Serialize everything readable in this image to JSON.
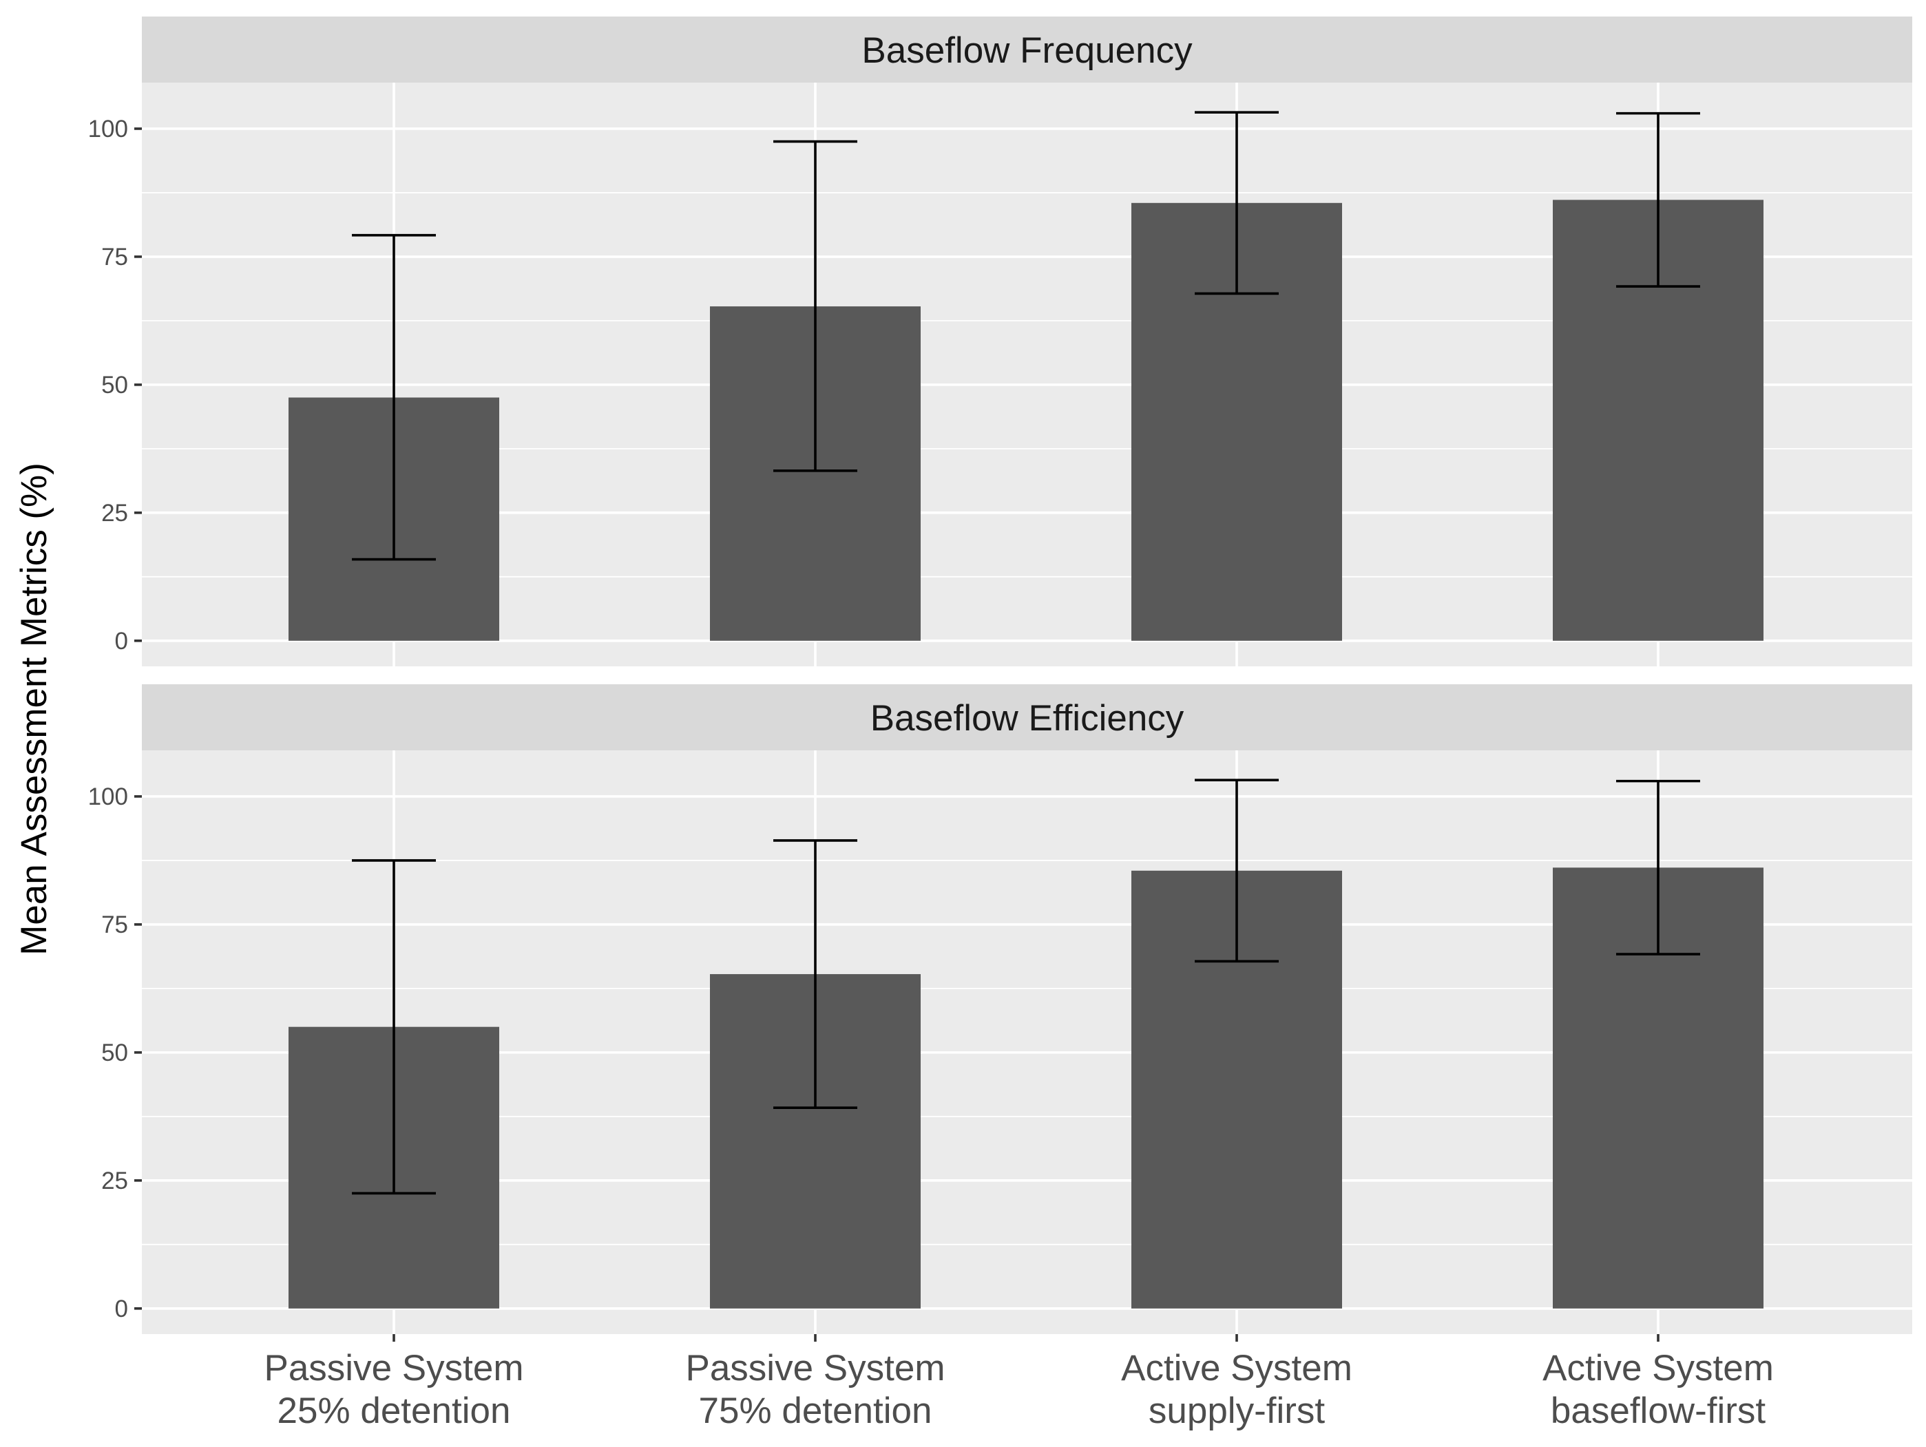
{
  "chart_data": {
    "type": "bar",
    "ylabel": "Mean Assessment Metrics (%)",
    "xlabel": "",
    "categories": [
      [
        "Passive System",
        "25% detention"
      ],
      [
        "Passive System",
        "75% detention"
      ],
      [
        "Active System",
        "supply-first"
      ],
      [
        "Active System",
        "baseflow-first"
      ]
    ],
    "ylim": [
      -5,
      109
    ],
    "yticks": [
      0,
      25,
      50,
      75,
      100
    ],
    "ytick_labels": [
      "0",
      "25",
      "50",
      "75",
      "100"
    ],
    "panels": [
      {
        "title": "Baseflow Frequency",
        "values": [
          47.5,
          65.3,
          85.5,
          86.1
        ],
        "error_low": [
          15.9,
          33.2,
          67.8,
          69.2
        ],
        "error_high": [
          79.2,
          97.5,
          103.2,
          103.0
        ]
      },
      {
        "title": "Baseflow Efficiency",
        "values": [
          55.0,
          65.3,
          85.5,
          86.1
        ],
        "error_low": [
          22.5,
          39.2,
          67.8,
          69.2
        ],
        "error_high": [
          87.5,
          91.4,
          103.2,
          103.0
        ]
      }
    ]
  }
}
